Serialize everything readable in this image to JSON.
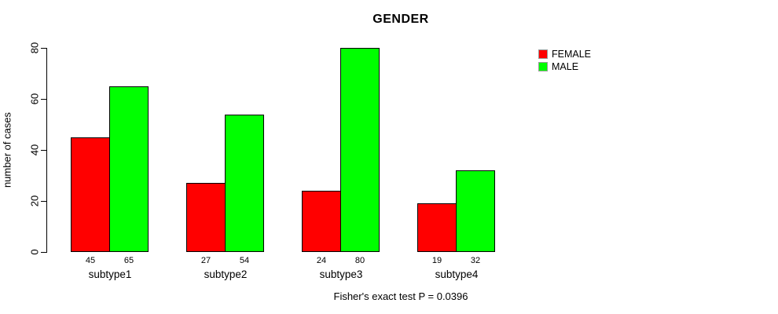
{
  "figure": {
    "title": "GENDER",
    "caption": "Fisher's exact test P = 0.0396"
  },
  "chart_data": {
    "type": "bar",
    "title": "GENDER",
    "categories": [
      "subtype1",
      "subtype2",
      "subtype3",
      "subtype4"
    ],
    "series": [
      {
        "name": "FEMALE",
        "color": "#ff0000",
        "values": [
          45,
          27,
          24,
          19
        ]
      },
      {
        "name": "MALE",
        "color": "#00ff00",
        "values": [
          65,
          54,
          80,
          32
        ]
      }
    ],
    "bar_value_labels": [
      [
        "45",
        "65"
      ],
      [
        "27",
        "54"
      ],
      [
        "24",
        "80"
      ],
      [
        "19",
        "32"
      ]
    ],
    "xlabel": "",
    "ylabel": "number of cases",
    "ylim": [
      0,
      80
    ],
    "yticks": [
      0,
      20,
      40,
      60,
      80
    ],
    "grid": false,
    "legend_position": "right",
    "annotation": "Fisher's exact test P = 0.0396"
  }
}
